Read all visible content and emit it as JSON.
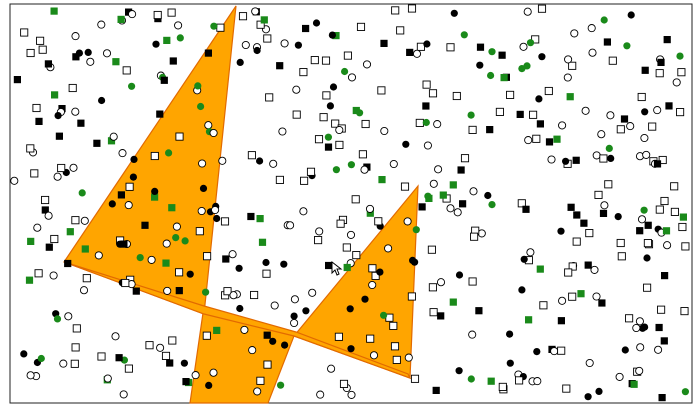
{
  "canvas": {
    "background": "#ffffff",
    "frame_color": "#222222",
    "triangle_fill": "#FFA500",
    "triangle_stroke": "#E26A00"
  },
  "legend_colors": {
    "black": "#000000",
    "green": "#1A8A1A",
    "outline": "#000000"
  },
  "shapes_note": "",
  "icons": {
    "pointer": "mouse-pointer-icon"
  }
}
